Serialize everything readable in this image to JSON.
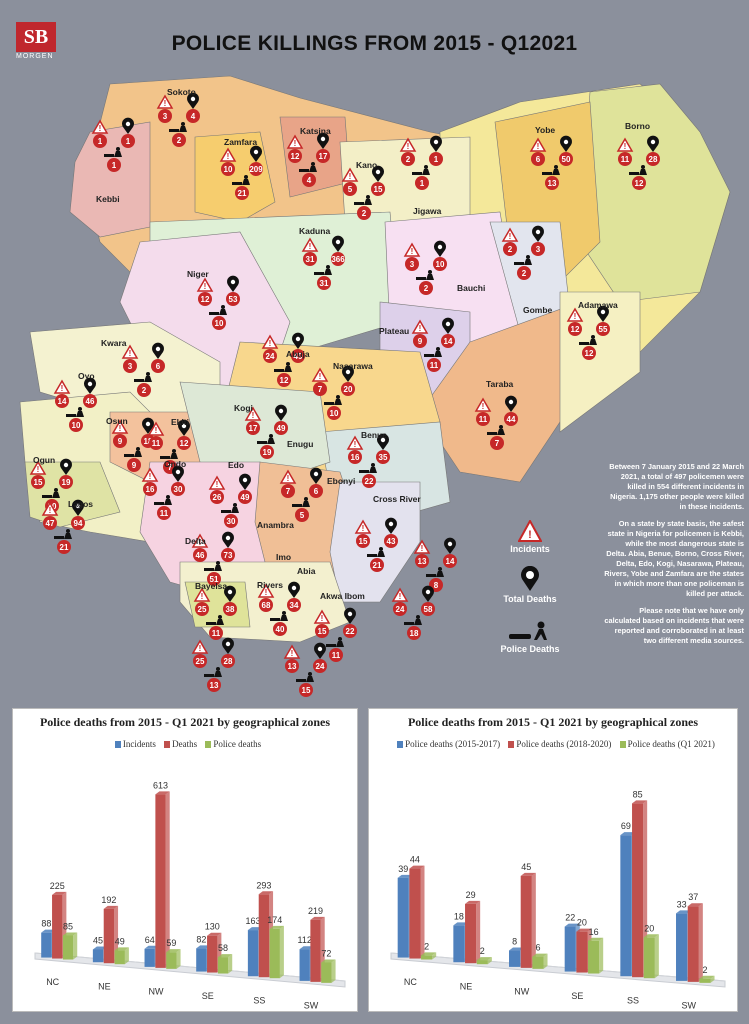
{
  "brand": {
    "logo_text": "SB",
    "logo_sub": "MORGEN"
  },
  "title": "POLICE KILLINGS FROM 2015 - Q12021",
  "states": [
    {
      "name": "Sokoto",
      "incidents": "3",
      "deaths": "4",
      "police": "2"
    },
    {
      "name": "Kebbi",
      "incidents": "1",
      "deaths": "1",
      "police": "1"
    },
    {
      "name": "Zamfara",
      "incidents": "10",
      "deaths": "209",
      "police": "21"
    },
    {
      "name": "Katsina",
      "incidents": "12",
      "deaths": "17",
      "police": "4"
    },
    {
      "name": "Kano",
      "incidents": "5",
      "deaths": "15",
      "police": "2"
    },
    {
      "name": "Jigawa",
      "incidents": "2",
      "deaths": "1",
      "police": "1"
    },
    {
      "name": "Yobe",
      "incidents": "6",
      "deaths": "50",
      "police": "13"
    },
    {
      "name": "Borno",
      "incidents": "11",
      "deaths": "28",
      "police": "12"
    },
    {
      "name": "Kaduna",
      "incidents": "31",
      "deaths": "366",
      "police": "31"
    },
    {
      "name": "Niger",
      "incidents": "12",
      "deaths": "53",
      "police": "10"
    },
    {
      "name": "Bauchi",
      "incidents": "3",
      "deaths": "10",
      "police": "2"
    },
    {
      "name": "Gombe",
      "incidents": "2",
      "deaths": "3",
      "police": "2"
    },
    {
      "name": "Adamawa",
      "incidents": "12",
      "deaths": "55",
      "police": "12"
    },
    {
      "name": "Plateau",
      "incidents": "9",
      "deaths": "14",
      "police": "11"
    },
    {
      "name": "Kwara",
      "incidents": "3",
      "deaths": "6",
      "police": "2"
    },
    {
      "name": "Abuja",
      "incidents": "24",
      "deaths": "49",
      "police": "12"
    },
    {
      "name": "Nasarawa",
      "incidents": "7",
      "deaths": "20",
      "police": "10"
    },
    {
      "name": "Oyo",
      "incidents": "14",
      "deaths": "46",
      "police": "10"
    },
    {
      "name": "Taraba",
      "incidents": "11",
      "deaths": "44",
      "police": "7"
    },
    {
      "name": "Osun",
      "incidents": "9",
      "deaths": "18",
      "police": "9"
    },
    {
      "name": "Ekiti",
      "incidents": "11",
      "deaths": "12",
      "police": "7"
    },
    {
      "name": "Kogi",
      "incidents": "17",
      "deaths": "49",
      "police": "19"
    },
    {
      "name": "Ogun",
      "incidents": "15",
      "deaths": "19",
      "police": "10"
    },
    {
      "name": "Ondo",
      "incidents": "16",
      "deaths": "30",
      "police": "11"
    },
    {
      "name": "Edo",
      "incidents": "26",
      "deaths": "49",
      "police": "30"
    },
    {
      "name": "Benue",
      "incidents": "16",
      "deaths": "35",
      "police": "22"
    },
    {
      "name": "Enugu",
      "incidents": "7",
      "deaths": "6",
      "police": "5"
    },
    {
      "name": "Lagos",
      "incidents": "47",
      "deaths": "94",
      "police": "21"
    },
    {
      "name": "Ebonyi",
      "incidents": "15",
      "deaths": "43",
      "police": "21"
    },
    {
      "name": "Cross River",
      "incidents": "13",
      "deaths": "14",
      "police": "8"
    },
    {
      "name": "Delta",
      "incidents": "46",
      "deaths": "73",
      "police": "51"
    },
    {
      "name": "Anambra",
      "incidents": "24",
      "deaths": "58",
      "police": "18"
    },
    {
      "name": "Imo",
      "incidents": "68",
      "deaths": "34",
      "police": "40"
    },
    {
      "name": "Bayelsa",
      "incidents": "25",
      "deaths": "38",
      "police": "11"
    },
    {
      "name": "Abia",
      "incidents": "15",
      "deaths": "22",
      "police": "11"
    },
    {
      "name": "Akwa Ibom",
      "incidents": "13",
      "deaths": "24",
      "police": "15"
    },
    {
      "name": "Rivers",
      "incidents": "25",
      "deaths": "28",
      "police": "13"
    }
  ],
  "legend": {
    "incidents": "Incidents",
    "deaths": "Total Deaths",
    "police": "Police Deaths"
  },
  "summary": [
    "Between 7 January 2015 and 22 March 2021, a total of 497 policemen were killed in 554 different incidents in Nigeria. 1,175 other people were killed in these incidents.",
    "On a state by state basis, the safest state in Nigeria for policemen is Kebbi, while the most dangerous state is Delta. Abia, Benue, Borno, Cross River, Delta, Edo, Kogi, Nasarawa, Plateau, Rivers, Yobe and Zamfara are the states in which more than one policeman is killed per attack.",
    "Please note that we have only calculated based on incidents that were reported and corroborated in at least two different media sources."
  ],
  "colors": {
    "incidents": "#4f81bd",
    "deaths": "#c0504d",
    "police": "#9bbb59",
    "police_2015_2017": "#4f81bd",
    "police_2018_2020": "#c0504d",
    "police_q1_2021": "#9bbb59"
  },
  "chart_data": [
    {
      "type": "bar",
      "title": "Police deaths from 2015 - Q1 2021 by geographical zones",
      "categories": [
        "NC",
        "NE",
        "NW",
        "SE",
        "SS",
        "SW"
      ],
      "series": [
        {
          "name": "Incidents",
          "values": [
            88,
            45,
            64,
            82,
            163,
            112
          ]
        },
        {
          "name": "Deaths",
          "values": [
            225,
            192,
            613,
            130,
            293,
            219
          ]
        },
        {
          "name": "Police deaths",
          "values": [
            85,
            49,
            59,
            58,
            174,
            72
          ]
        }
      ],
      "ylim": [
        0,
        650
      ],
      "legend": "top"
    },
    {
      "type": "bar",
      "title": "Police deaths from 2015 - Q1 2021 by geographical zones",
      "categories": [
        "NC",
        "NE",
        "NW",
        "SE",
        "SS",
        "SW"
      ],
      "series": [
        {
          "name": "Police deaths (2015-2017)",
          "values": [
            39,
            18,
            8,
            22,
            69,
            33
          ]
        },
        {
          "name": "Police deaths (2018-2020)",
          "values": [
            44,
            29,
            45,
            20,
            85,
            37
          ]
        },
        {
          "name": "Police deaths (Q1 2021)",
          "values": [
            2,
            2,
            6,
            16,
            20,
            2
          ]
        }
      ],
      "ylim": [
        0,
        90
      ],
      "legend": "top"
    }
  ]
}
